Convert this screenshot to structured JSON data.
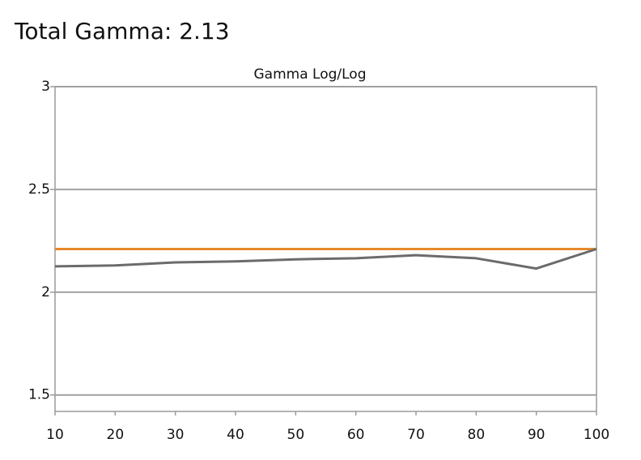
{
  "chart_data": {
    "type": "line",
    "title": "Total Gamma: 2.13",
    "subtitle": "Gamma Log/Log",
    "x": [
      10,
      20,
      30,
      40,
      50,
      60,
      70,
      80,
      90,
      100
    ],
    "series": [
      {
        "color": "#e8892b",
        "values": [
          2.21,
          2.21,
          2.21,
          2.21,
          2.21,
          2.21,
          2.21,
          2.21,
          2.21,
          2.21
        ]
      },
      {
        "color": "#6b6b6b",
        "values": [
          2.126,
          2.13,
          2.145,
          2.15,
          2.16,
          2.165,
          2.18,
          2.165,
          2.115,
          2.21
        ]
      }
    ],
    "xlim": [
      10,
      100
    ],
    "xticks": [
      10,
      20,
      30,
      40,
      50,
      60,
      70,
      80,
      90,
      100
    ],
    "ylim": [
      1.42,
      3
    ],
    "yticks": [
      1.5,
      2,
      2.5,
      3
    ],
    "grid": true
  }
}
